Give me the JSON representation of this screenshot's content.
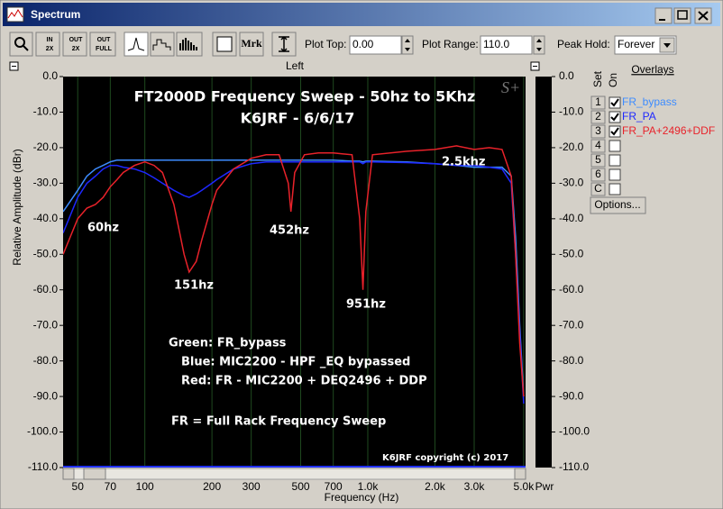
{
  "window": {
    "title": "Spectrum"
  },
  "toolbar": {
    "buttons": [
      {
        "top": "IN",
        "bottom": "2X"
      },
      {
        "top": "OUT",
        "bottom": "2X"
      },
      {
        "top": "OUT",
        "bottom": "FULL"
      }
    ],
    "marker": "Mrk",
    "plot_top_label": "Plot Top:",
    "plot_top": "0.00",
    "plot_range_label": "Plot Range:",
    "plot_range": "110.0",
    "peak_hold_label": "Peak Hold:",
    "peak_hold": "Forever"
  },
  "channel": "Left",
  "overlays": {
    "title": "Overlays",
    "set_header": "Set",
    "on_header": "On",
    "options": "Options...",
    "rows": [
      {
        "set": "1",
        "on": true
      },
      {
        "set": "2",
        "on": true
      },
      {
        "set": "3",
        "on": true
      },
      {
        "set": "4",
        "on": false
      },
      {
        "set": "5",
        "on": false
      },
      {
        "set": "6",
        "on": false
      },
      {
        "set": "C",
        "on": false
      }
    ]
  },
  "power_label": "Pwr",
  "chart_data": {
    "type": "line",
    "title": "FT2000D Frequency Sweep - 50hz to 5Khz",
    "subtitle": "K6JRF - 6/6/17",
    "xlabel": "Frequency (Hz)",
    "ylabel": "Relative Amplitude (dBr)",
    "xscale": "log",
    "grid": "x",
    "annotations": [
      "2.5khz",
      "60hz",
      "452hz",
      "151hz",
      "951hz",
      "Green: FR_bypass",
      "Blue: MIC2200 -  HPF _EQ bypassed",
      "Red: FR - MIC2200 + DEQ2496 + DDP",
      "FR = Full Rack Frequency Sweep",
      "K6JRF copyright (c) 2017",
      "S+"
    ],
    "xlim": [
      43,
      5100
    ],
    "ylim": [
      -110,
      0
    ],
    "xticks": [
      50,
      70,
      100,
      200,
      300,
      500,
      700,
      {
        "value": 1000,
        "label": "1.0k"
      },
      {
        "value": 2000,
        "label": "2.0k"
      },
      {
        "value": 3000,
        "label": "3.0k"
      },
      {
        "value": 5000,
        "label": "5.0k"
      }
    ],
    "yticks": [
      {
        "value": 0,
        "label": "0.0"
      },
      {
        "value": -10,
        "label": "-10.0"
      },
      {
        "value": -20,
        "label": "-20.0"
      },
      {
        "value": -30,
        "label": "-30.0"
      },
      {
        "value": -40,
        "label": "-40.0"
      },
      {
        "value": -50,
        "label": "-50.0"
      },
      {
        "value": -60,
        "label": "-60.0"
      },
      {
        "value": -70,
        "label": "-70.0"
      },
      {
        "value": -80,
        "label": "-80.0"
      },
      {
        "value": -90,
        "label": "-90.0"
      },
      {
        "value": -100,
        "label": "-100.0"
      },
      {
        "value": -110,
        "label": "-110.0"
      }
    ],
    "x": [
      43,
      50,
      55,
      60,
      65,
      70,
      75,
      80,
      90,
      100,
      110,
      120,
      135,
      150,
      158,
      170,
      180,
      200,
      210,
      250,
      300,
      350,
      400,
      440,
      452,
      470,
      520,
      600,
      700,
      850,
      920,
      951,
      980,
      1050,
      1500,
      2000,
      2500,
      3000,
      3500,
      4000,
      4400,
      4600,
      4800,
      5000
    ],
    "series": [
      {
        "name": "FR_bypass",
        "color": "#3d8cff",
        "values": [
          -38,
          -32,
          -28,
          -26,
          -25,
          -24,
          -23.5,
          -23.5,
          -23.5,
          -23.5,
          -23.5,
          -23.5,
          -23.5,
          -23.5,
          -23.5,
          -23.5,
          -23.5,
          -23.5,
          -23.5,
          -23.5,
          -23.5,
          -23.5,
          -23.5,
          -23.5,
          -23.5,
          -23.5,
          -23.5,
          -23.5,
          -23.5,
          -23.8,
          -23.8,
          -24,
          -23.8,
          -23.8,
          -24,
          -24.5,
          -25,
          -25.5,
          -25.5,
          -25.5,
          -28,
          -45,
          -70,
          -90
        ]
      },
      {
        "name": "FR_PA",
        "color": "#1e28ff",
        "values": [
          -44,
          -34,
          -30,
          -28,
          -26,
          -25,
          -25,
          -25.5,
          -26,
          -27,
          -28.5,
          -30,
          -32,
          -33.5,
          -34,
          -33,
          -32,
          -30,
          -29,
          -26,
          -24.5,
          -24,
          -24,
          -24,
          -24,
          -24,
          -24,
          -24,
          -24,
          -24,
          -24,
          -24.5,
          -24,
          -24,
          -24.2,
          -24.5,
          -25,
          -25,
          -25.5,
          -26,
          -30,
          -50,
          -72,
          -92
        ]
      },
      {
        "name": "FR_PA+2496+DDF",
        "color": "#e8222a",
        "values": [
          -50,
          -40,
          -37,
          -36,
          -34,
          -31,
          -29,
          -27,
          -25,
          -24,
          -25,
          -27,
          -36,
          -50,
          -55,
          -52,
          -46,
          -36,
          -32,
          -26,
          -23,
          -22,
          -22,
          -30,
          -38,
          -27,
          -22,
          -21.5,
          -21.5,
          -22,
          -40,
          -60,
          -38,
          -22,
          -21,
          -20.5,
          -19.5,
          -20.5,
          -20,
          -20.5,
          -28,
          -50,
          -75,
          -90
        ]
      }
    ]
  }
}
